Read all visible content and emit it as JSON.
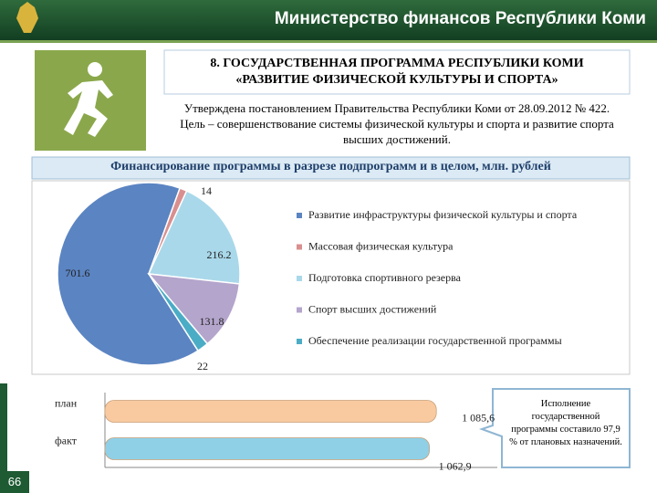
{
  "header": {
    "ministry": "Министерство финансов Республики Коми"
  },
  "slide": {
    "title_lines": [
      "8. ГОСУДАРСТВЕННАЯ ПРОГРАММА РЕСПУБЛИКИ КОМИ",
      "«РАЗВИТИЕ ФИЗИЧЕСКОЙ КУЛЬТУРЫ И СПОРТА»"
    ],
    "decree": "Утверждена постановлением Правительства Республики Коми от 28.09.2012 № 422.",
    "goal": "Цель – совершенствование системы физической культуры и спорта и развитие спорта высших достижений."
  },
  "callout": "Исполнение государственной программы составило 97,9 % от плановых назначений.",
  "page_number": "66",
  "chart_data": [
    {
      "type": "pie",
      "title": "Финансирование программы в разрезе подпрограмм и в целом, млн. рублей",
      "categories": [
        "Развитие инфраструктуры физической культуры и спорта",
        "Массовая физическая культура",
        "Подготовка спортивного резерва",
        "Спорт высших достижений",
        "Обеспечение реализации государственной программы"
      ],
      "values": [
        701.6,
        14,
        216.2,
        131.8,
        22
      ],
      "colors": [
        "#5b84c2",
        "#d98f8f",
        "#a9d8ea",
        "#b4a5cc",
        "#4bacc6"
      ]
    },
    {
      "type": "hbar",
      "categories": [
        "план",
        "факт"
      ],
      "values": [
        1085.6,
        1062.9
      ],
      "value_labels": [
        "1 085,6",
        "1 062,9"
      ],
      "colors": [
        "#f9caa0",
        "#8fd0e6"
      ],
      "xlim": [
        0,
        1100
      ]
    }
  ]
}
